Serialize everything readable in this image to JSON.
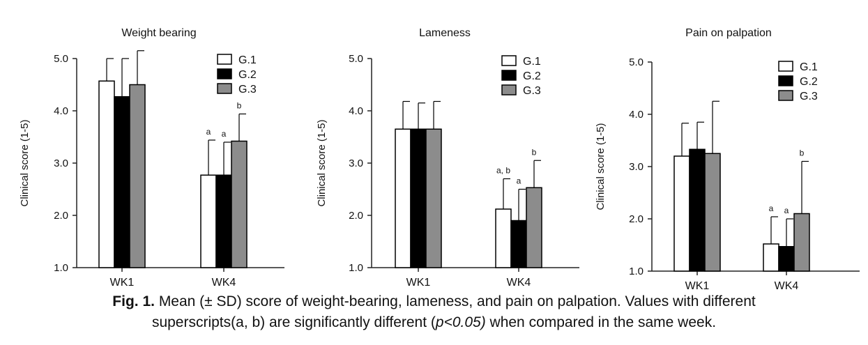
{
  "caption": {
    "label": "Fig. 1.",
    "line1": "Mean (± SD) score of weight-bearing, lameness, and pain on palpation. Values with different",
    "line2a": "superscripts(a, b) are significantly different (",
    "line2p": "p<0.05)",
    "line2b": " when compared in the same week."
  },
  "chart_data": [
    {
      "type": "bar",
      "title": "Weight bearing",
      "ylabel": "Clinical score (1-5)",
      "xlabel": "",
      "ylim": [
        1.0,
        5.0
      ],
      "yticks": [
        "1.0",
        "2.0",
        "3.0",
        "4.0",
        "5.0"
      ],
      "categories": [
        "WK1",
        "WK4"
      ],
      "legend_position": "top-right",
      "series": [
        {
          "name": "G.1",
          "color": "#ffffff",
          "values": [
            4.57,
            2.77
          ],
          "sd": [
            0.43,
            0.67
          ],
          "labels": [
            "",
            "a"
          ]
        },
        {
          "name": "G.2",
          "color": "#000000",
          "values": [
            4.27,
            2.77
          ],
          "sd": [
            0.73,
            0.63
          ],
          "labels": [
            "",
            "a"
          ]
        },
        {
          "name": "G.3",
          "color": "#8c8c8c",
          "values": [
            4.5,
            3.42
          ],
          "sd": [
            0.65,
            0.52
          ],
          "labels": [
            "",
            "b"
          ]
        }
      ]
    },
    {
      "type": "bar",
      "title": "Lameness",
      "ylabel": "Clinical score (1-5)",
      "xlabel": "",
      "ylim": [
        1.0,
        5.0
      ],
      "yticks": [
        "1.0",
        "2.0",
        "3.0",
        "4.0",
        "5.0"
      ],
      "categories": [
        "WK1",
        "WK4"
      ],
      "legend_position": "top-right",
      "series": [
        {
          "name": "G.1",
          "color": "#ffffff",
          "values": [
            3.65,
            2.12
          ],
          "sd": [
            0.53,
            0.58
          ],
          "labels": [
            "",
            "a, b"
          ]
        },
        {
          "name": "G.2",
          "color": "#000000",
          "values": [
            3.65,
            1.9
          ],
          "sd": [
            0.5,
            0.6
          ],
          "labels": [
            "",
            "a"
          ]
        },
        {
          "name": "G.3",
          "color": "#8c8c8c",
          "values": [
            3.65,
            2.53
          ],
          "sd": [
            0.53,
            0.52
          ],
          "labels": [
            "",
            "b"
          ]
        }
      ]
    },
    {
      "type": "bar",
      "title": "Pain on palpation",
      "ylabel": "Clinical score (1-5)",
      "xlabel": "",
      "ylim": [
        1.0,
        5.0
      ],
      "yticks": [
        "1.0",
        "2.0",
        "3.0",
        "4.0",
        "5.0"
      ],
      "categories": [
        "WK1",
        "WK4"
      ],
      "legend_position": "top-right",
      "series": [
        {
          "name": "G.1",
          "color": "#ffffff",
          "values": [
            3.2,
            1.52
          ],
          "sd": [
            0.63,
            0.52
          ],
          "labels": [
            "",
            "a"
          ]
        },
        {
          "name": "G.2",
          "color": "#000000",
          "values": [
            3.33,
            1.47
          ],
          "sd": [
            0.52,
            0.53
          ],
          "labels": [
            "",
            "a"
          ]
        },
        {
          "name": "G.3",
          "color": "#8c8c8c",
          "values": [
            3.25,
            2.1
          ],
          "sd": [
            1.0,
            1.0
          ],
          "labels": [
            "",
            "b"
          ]
        }
      ]
    }
  ]
}
